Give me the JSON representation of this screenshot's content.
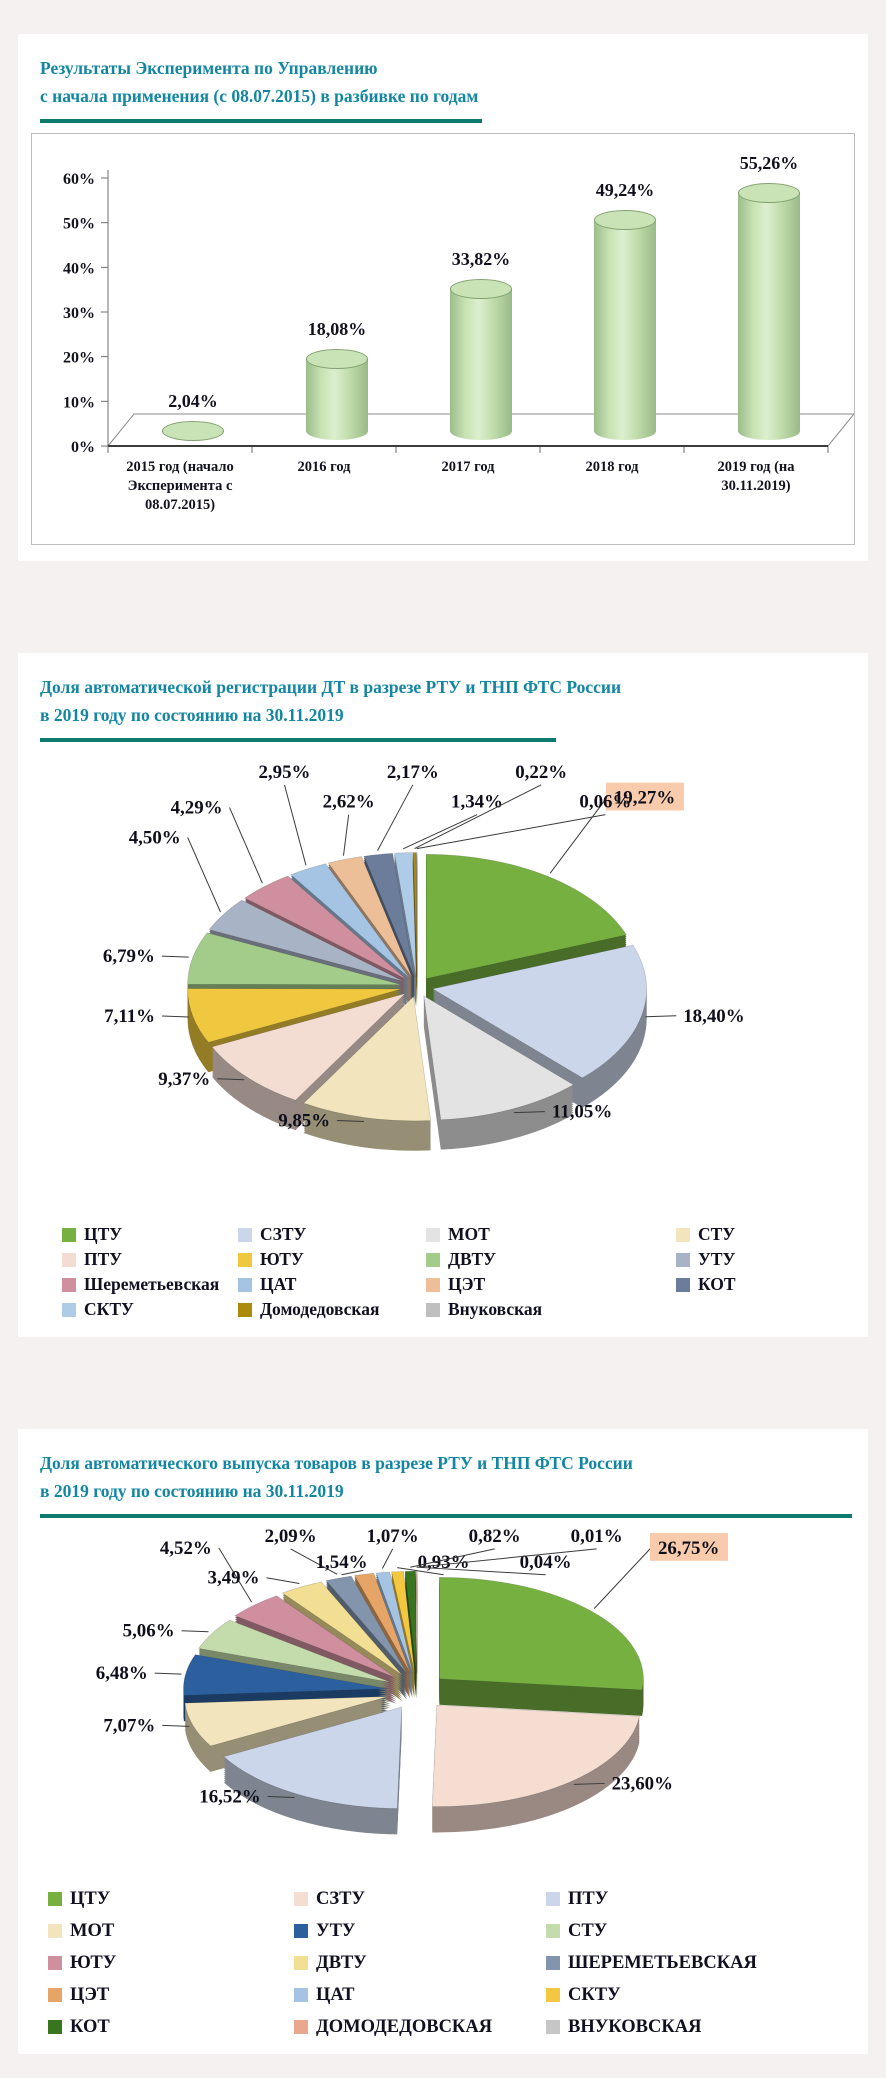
{
  "theme": {
    "title_color": "#1286a2",
    "rule_color": "#0d7a6e",
    "highlight_bg": "#f8cbad",
    "bar_color": "#c9e3b6",
    "text_color": "#12121e"
  },
  "chart_data": [
    {
      "type": "bar",
      "title": "Результаты Эксперимента по Управлению",
      "subtitle": "с начала применения (с 08.07.2015)  в разбивке по годам",
      "categories": [
        "2015 год (начало Эксперимента с 08.07.2015)",
        "2016 год",
        "2017 год",
        "2018 год",
        "2019 год (на 30.11.2019)"
      ],
      "values": [
        2.04,
        18.08,
        33.82,
        49.24,
        55.26
      ],
      "value_labels": [
        "2,04%",
        "18,08%",
        "33,82%",
        "49,24%",
        "55,26%"
      ],
      "y_ticks": [
        "0%",
        "10%",
        "20%",
        "30%",
        "40%",
        "50%",
        "60%"
      ],
      "ylim": [
        0,
        60
      ],
      "xlabel": "",
      "ylabel": "",
      "grid": false,
      "bar_color": "#c9e3b6"
    },
    {
      "type": "pie",
      "title": "Доля автоматической регистрации ДТ  в разрезе РТУ  и ТНП ФТС  России",
      "subtitle": "в 2019 году по состоянию на 30.11.2019",
      "legend_position": "bottom",
      "legend_columns": 4,
      "highlight_first": true,
      "slices": [
        {
          "label": "ЦТУ",
          "value": 19.27,
          "display": "19,27%",
          "color": "#76b041"
        },
        {
          "label": "СЗТУ",
          "value": 18.4,
          "display": "18,40%",
          "color": "#ccd6ea"
        },
        {
          "label": "МОТ",
          "value": 11.05,
          "display": "11,05%",
          "color": "#e3e3e3"
        },
        {
          "label": "СТУ",
          "value": 9.85,
          "display": "9,85%",
          "color": "#f2e5bd"
        },
        {
          "label": "ПТУ",
          "value": 9.37,
          "display": "9,37%",
          "color": "#f3ddd3"
        },
        {
          "label": "ЮТУ",
          "value": 7.11,
          "display": "7,11%",
          "color": "#efc83f"
        },
        {
          "label": "ДВТУ",
          "value": 6.79,
          "display": "6,79%",
          "color": "#a3cc8b"
        },
        {
          "label": "УТУ",
          "value": 4.5,
          "display": "4,50%",
          "color": "#a9b3c6"
        },
        {
          "label": "Шереметьевская",
          "value": 4.29,
          "display": "4,29%",
          "color": "#cf8f9f"
        },
        {
          "label": "ЦАТ",
          "value": 2.95,
          "display": "2,95%",
          "color": "#a5c3e3"
        },
        {
          "label": "ЦЭТ",
          "value": 2.62,
          "display": "2,62%",
          "color": "#edbf98"
        },
        {
          "label": "КОТ",
          "value": 2.17,
          "display": "2,17%",
          "color": "#6b7d9b"
        },
        {
          "label": "СКТУ",
          "value": 1.34,
          "display": "1,34%",
          "color": "#aecbe8"
        },
        {
          "label": "Домодедовская",
          "value": 0.22,
          "display": "0,22%",
          "color": "#ab8b0a"
        },
        {
          "label": "Внуковская",
          "value": 0.06,
          "display": "0,06%",
          "color": "#bfbfbf"
        }
      ]
    },
    {
      "type": "pie",
      "title": "Доля автоматического выпуска товаров  в разрезе РТУ  и ТНП ФТС России",
      "subtitle": "в 2019 году по состоянию на 30.11.2019",
      "legend_position": "bottom",
      "legend_columns": 3,
      "highlight_first": true,
      "slices": [
        {
          "label": "ЦТУ",
          "value": 26.75,
          "display": "26,75%",
          "color": "#76b041"
        },
        {
          "label": "СЗТУ",
          "value": 23.6,
          "display": "23,60%",
          "color": "#f6ddd1"
        },
        {
          "label": "ПТУ",
          "value": 16.52,
          "display": "16,52%",
          "color": "#ccd6ea"
        },
        {
          "label": "МОТ",
          "value": 7.07,
          "display": "7,07%",
          "color": "#f2e5bd"
        },
        {
          "label": "УТУ",
          "value": 6.48,
          "display": "6,48%",
          "color": "#2c5f9e"
        },
        {
          "label": "СТУ",
          "value": 5.06,
          "display": "5,06%",
          "color": "#c4dcab"
        },
        {
          "label": "ЮТУ",
          "value": 4.52,
          "display": "4,52%",
          "color": "#cf8f9f"
        },
        {
          "label": "ДВТУ",
          "value": 3.49,
          "display": "3,49%",
          "color": "#f2df93"
        },
        {
          "label": "ШЕРЕМЕТЬЕВСКАЯ",
          "value": 2.09,
          "display": "2,09%",
          "color": "#8295ad"
        },
        {
          "label": "ЦЭТ",
          "value": 1.54,
          "display": "1,54%",
          "color": "#e6a566"
        },
        {
          "label": "ЦАТ",
          "value": 1.07,
          "display": "1,07%",
          "color": "#a5c3e3"
        },
        {
          "label": "СКТУ",
          "value": 0.93,
          "display": "0,93%",
          "color": "#f3c73f"
        },
        {
          "label": "КОТ",
          "value": 0.82,
          "display": "0,82%",
          "color": "#39741f"
        },
        {
          "label": "ДОМОДЕДОВСКАЯ",
          "value": 0.04,
          "display": "0,04%",
          "color": "#e9a78e"
        },
        {
          "label": "ВНУКОВСКАЯ",
          "value": 0.01,
          "display": "0,01%",
          "color": "#c6c6c6"
        }
      ]
    }
  ]
}
